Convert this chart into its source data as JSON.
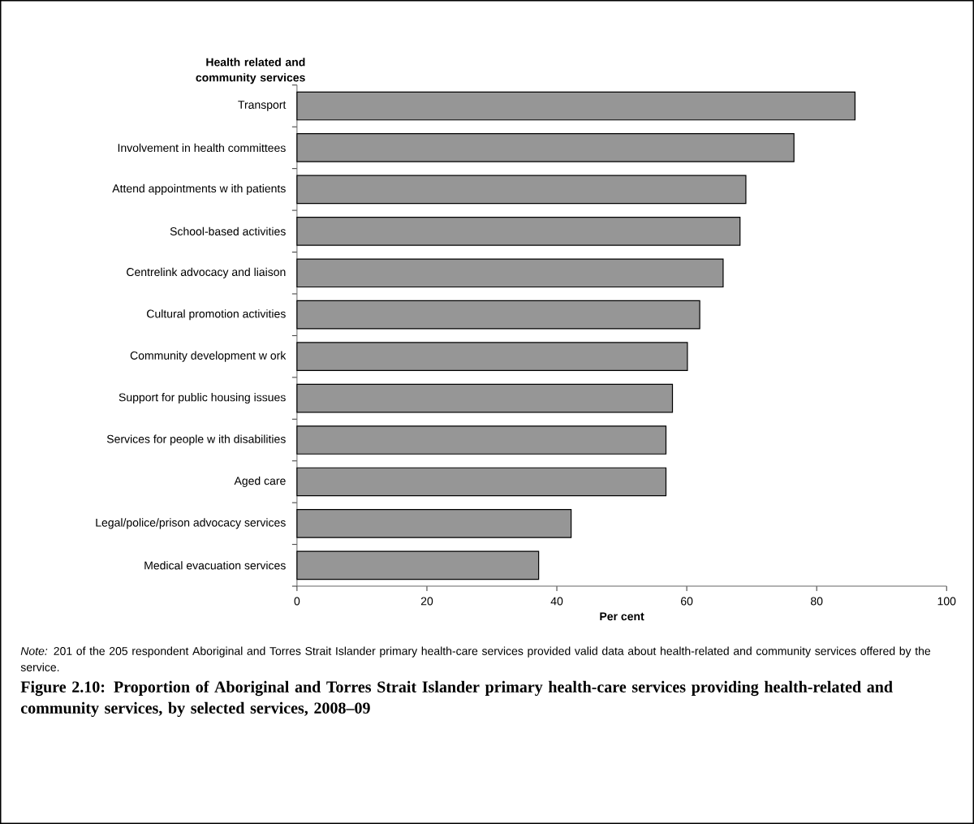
{
  "chart_data": {
    "type": "bar",
    "orientation": "horizontal",
    "title": "Figure 2.10: Proportion of Aboriginal and Torres Strait Islander primary health-care services providing health-related and community services, by selected services, 2008–09",
    "ylabel": "Health related and community services",
    "xlabel": "Per cent",
    "annotations": [
      "*Note:* 201 of the 205 respondent Aboriginal and Torres Strait Islander primary health-care services provided valid data about health-related and community services offered by the service."
    ],
    "categories": [
      "Transport",
      "Involvement in health committees",
      "Attend appointments w ith patients",
      "School-based activities",
      "Centrelink advocacy and liaison",
      "Cultural promotion activities",
      "Community development w ork",
      "Support for public housing issues",
      "Services for people w ith disabilities",
      "Aged care",
      "Legal/police/prison advocacy services",
      "Medical evacuation services"
    ],
    "values": [
      85.9,
      76.5,
      69.1,
      68.2,
      65.6,
      62.0,
      60.1,
      57.8,
      56.8,
      56.8,
      42.2,
      37.2
    ],
    "color": "#969696",
    "xlim": [
      0,
      100
    ],
    "xticks": [
      0,
      20,
      40,
      60,
      80,
      100
    ]
  }
}
